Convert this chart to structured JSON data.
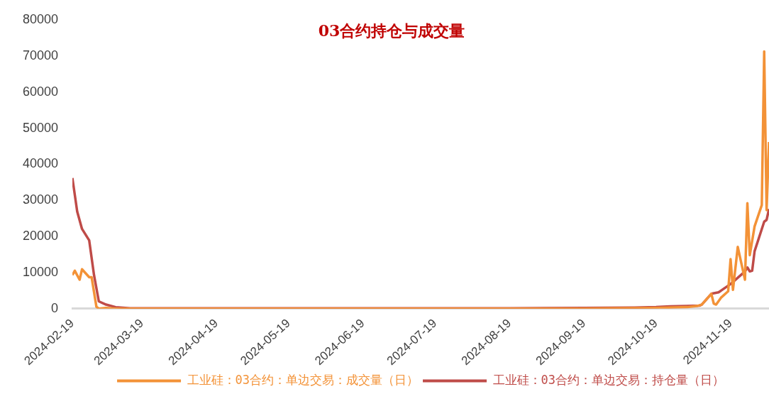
{
  "chart_data": {
    "type": "line",
    "title": "03合约持仓与成交量",
    "legend": "bottom",
    "grid": false,
    "marker": "none",
    "line_style": "solid",
    "xlim": [
      "2024-02-19",
      "2024-12-05"
    ],
    "xticks": [
      "2024-02-19",
      "2024-03-19",
      "2024-04-19",
      "2024-05-19",
      "2024-06-19",
      "2024-07-19",
      "2024-08-19",
      "2024-09-19",
      "2024-10-19",
      "2024-11-19"
    ],
    "ylim": [
      0,
      80000
    ],
    "yticks": [
      0,
      10000,
      20000,
      30000,
      40000,
      50000,
      60000,
      70000,
      80000
    ],
    "series": [
      {
        "name": "工业硅：03合约：单边交易：成交量（日）",
        "color": "#f39237",
        "x": [
          "2024-02-19",
          "2024-02-20",
          "2024-02-22",
          "2024-02-23",
          "2024-02-26",
          "2024-02-27",
          "2024-02-29",
          "2024-03-01",
          "2024-03-04",
          "2024-03-08",
          "2024-04-19",
          "2024-06-19",
          "2024-08-19",
          "2024-09-19",
          "2024-10-19",
          "2024-11-01",
          "2024-11-05",
          "2024-11-07",
          "2024-11-11",
          "2024-11-12",
          "2024-11-13",
          "2024-11-15",
          "2024-11-18",
          "2024-11-19",
          "2024-11-20",
          "2024-11-22",
          "2024-11-25",
          "2024-11-26",
          "2024-11-27",
          "2024-11-29",
          "2024-12-02",
          "2024-12-03",
          "2024-12-04",
          "2024-12-05"
        ],
        "values": [
          9300,
          10500,
          8000,
          10900,
          8700,
          8700,
          500,
          0,
          200,
          0,
          0,
          0,
          0,
          0,
          200,
          400,
          700,
          1100,
          4100,
          1400,
          1100,
          3000,
          4800,
          13700,
          5200,
          17100,
          8000,
          29200,
          14800,
          22800,
          28700,
          71300,
          27300,
          46200
        ]
      },
      {
        "name": "工业硅：03合约：单边交易：持仓量（日）",
        "color": "#bf4b48",
        "x": [
          "2024-02-19",
          "2024-02-21",
          "2024-02-23",
          "2024-02-26",
          "2024-02-28",
          "2024-03-01",
          "2024-03-04",
          "2024-03-08",
          "2024-03-14",
          "2024-04-19",
          "2024-08-19",
          "2024-09-19",
          "2024-10-10",
          "2024-10-19",
          "2024-10-25",
          "2024-11-01",
          "2024-11-06",
          "2024-11-07",
          "2024-11-11",
          "2024-11-14",
          "2024-11-19",
          "2024-11-25",
          "2024-11-26",
          "2024-11-27",
          "2024-11-28",
          "2024-11-29",
          "2024-12-03",
          "2024-12-04",
          "2024-12-05"
        ],
        "values": [
          36200,
          26900,
          22100,
          18900,
          9300,
          2000,
          1100,
          400,
          100,
          100,
          100,
          200,
          300,
          400,
          600,
          700,
          800,
          1100,
          4100,
          4500,
          6800,
          10300,
          11400,
          10300,
          10500,
          15900,
          24100,
          24600,
          27600
        ]
      }
    ]
  }
}
